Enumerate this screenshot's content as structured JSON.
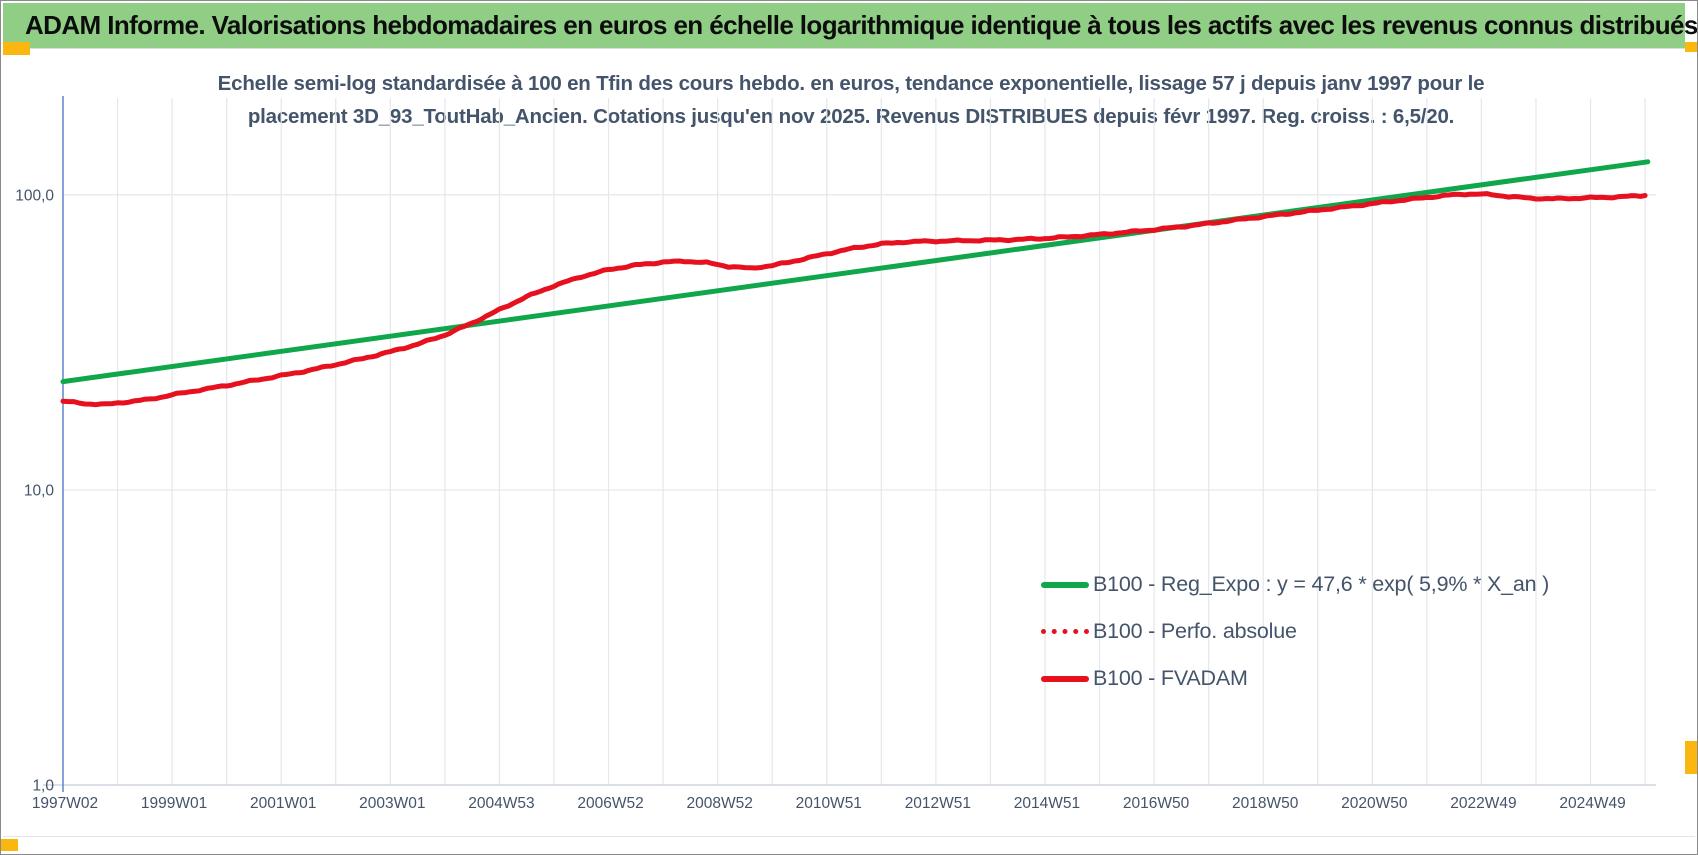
{
  "window_header": {
    "title": "ADAM Informe. Valorisations hebdomadaires en euros en échelle logarithmique identique à tous les actifs avec les revenus connus distribués",
    "bg_color": "#90CE86",
    "text_color": "#0D0D0D"
  },
  "markers": {
    "color": "#F9B70F"
  },
  "colors": {
    "title_text": "#44546A",
    "axis_text": "#44546A",
    "gridline": "#E4E7EB",
    "y_axis_line": "#4472C4",
    "x_axis_line": "#C8CDD6",
    "green_series": "#10A64C",
    "red_series": "#E6101F"
  },
  "chart_data": {
    "type": "line",
    "title_lines": [
      "Echelle semi-log standardisée à 100 en Tfin des cours hebdo. en euros, tendance exponentielle, lissage 57 j depuis janv 1997 pour le",
      "placement 3D_93_ToutHab_Ancien. Cotations jusqu'en nov 2025. Revenus DISTRIBUES depuis févr 1997. Reg. croiss. : 6,5/20."
    ],
    "y_scale": "log",
    "ylim": [
      1,
      213
    ],
    "y_ticks": [
      {
        "label": "100,0",
        "value": 100
      },
      {
        "label": "10,0",
        "value": 10
      },
      {
        "label": "1,0",
        "value": 1
      }
    ],
    "x_range_years": [
      1997.0,
      2026.2
    ],
    "x_gridline_interval_years": 1,
    "x_tick_labels": [
      "1997W02",
      "1999W01",
      "2001W01",
      "2003W01",
      "2004W53",
      "2006W52",
      "2008W52",
      "2010W51",
      "2012W51",
      "2014W51",
      "2016W50",
      "2018W50",
      "2020W50",
      "2022W49",
      "2024W49"
    ],
    "grid": "on",
    "legend_position": "inside-right",
    "series": [
      {
        "name": "B100 - Reg_Expo : y = 47,6 * exp( 5,9% *  X_an )",
        "color": "#10A64C",
        "style": "solid",
        "points": [
          [
            1997.0,
            23.3
          ],
          [
            2026.05,
            129.5
          ]
        ]
      },
      {
        "name": "B100 - Perfo. absolue",
        "color": "#E6101F",
        "style": "dotted",
        "coincident_with": "B100 - FVADAM"
      },
      {
        "name": "B100 - FVADAM",
        "color": "#E6101F",
        "style": "solid",
        "points": [
          [
            1997.0,
            20.0
          ],
          [
            1997.4,
            19.6
          ],
          [
            1997.8,
            19.5
          ],
          [
            1998.2,
            19.9
          ],
          [
            1998.6,
            20.3
          ],
          [
            1999.0,
            21.0
          ],
          [
            1999.5,
            21.8
          ],
          [
            2000.0,
            22.6
          ],
          [
            2000.5,
            23.5
          ],
          [
            2001.0,
            24.4
          ],
          [
            2001.5,
            25.4
          ],
          [
            2002.0,
            26.6
          ],
          [
            2002.5,
            27.9
          ],
          [
            2003.0,
            29.4
          ],
          [
            2003.5,
            31.2
          ],
          [
            2004.0,
            33.5
          ],
          [
            2004.5,
            36.8
          ],
          [
            2005.0,
            40.8
          ],
          [
            2005.5,
            45.2
          ],
          [
            2006.0,
            49.2
          ],
          [
            2006.5,
            52.8
          ],
          [
            2007.0,
            55.8
          ],
          [
            2007.5,
            57.8
          ],
          [
            2008.0,
            59.2
          ],
          [
            2008.4,
            59.6
          ],
          [
            2008.8,
            58.9
          ],
          [
            2009.2,
            57.2
          ],
          [
            2009.6,
            56.4
          ],
          [
            2010.0,
            57.6
          ],
          [
            2010.5,
            60.2
          ],
          [
            2011.0,
            63.2
          ],
          [
            2011.5,
            66.0
          ],
          [
            2012.0,
            68.2
          ],
          [
            2012.4,
            69.2
          ],
          [
            2012.8,
            69.6
          ],
          [
            2013.2,
            69.8
          ],
          [
            2013.6,
            70.0
          ],
          [
            2014.0,
            70.2
          ],
          [
            2014.5,
            70.6
          ],
          [
            2015.0,
            71.2
          ],
          [
            2015.5,
            72.2
          ],
          [
            2016.0,
            73.4
          ],
          [
            2016.5,
            74.8
          ],
          [
            2017.0,
            76.2
          ],
          [
            2017.5,
            78.0
          ],
          [
            2018.0,
            80.0
          ],
          [
            2018.5,
            82.2
          ],
          [
            2019.0,
            84.4
          ],
          [
            2019.5,
            86.6
          ],
          [
            2020.0,
            88.8
          ],
          [
            2020.5,
            91.0
          ],
          [
            2021.0,
            93.4
          ],
          [
            2021.5,
            95.8
          ],
          [
            2022.0,
            98.0
          ],
          [
            2022.4,
            99.8
          ],
          [
            2022.8,
            100.8
          ],
          [
            2023.1,
            100.4
          ],
          [
            2023.5,
            98.8
          ],
          [
            2023.9,
            97.4
          ],
          [
            2024.3,
            97.0
          ],
          [
            2024.7,
            97.4
          ],
          [
            2025.1,
            97.9
          ],
          [
            2025.5,
            98.4
          ],
          [
            2026.0,
            99.5
          ]
        ]
      }
    ]
  }
}
